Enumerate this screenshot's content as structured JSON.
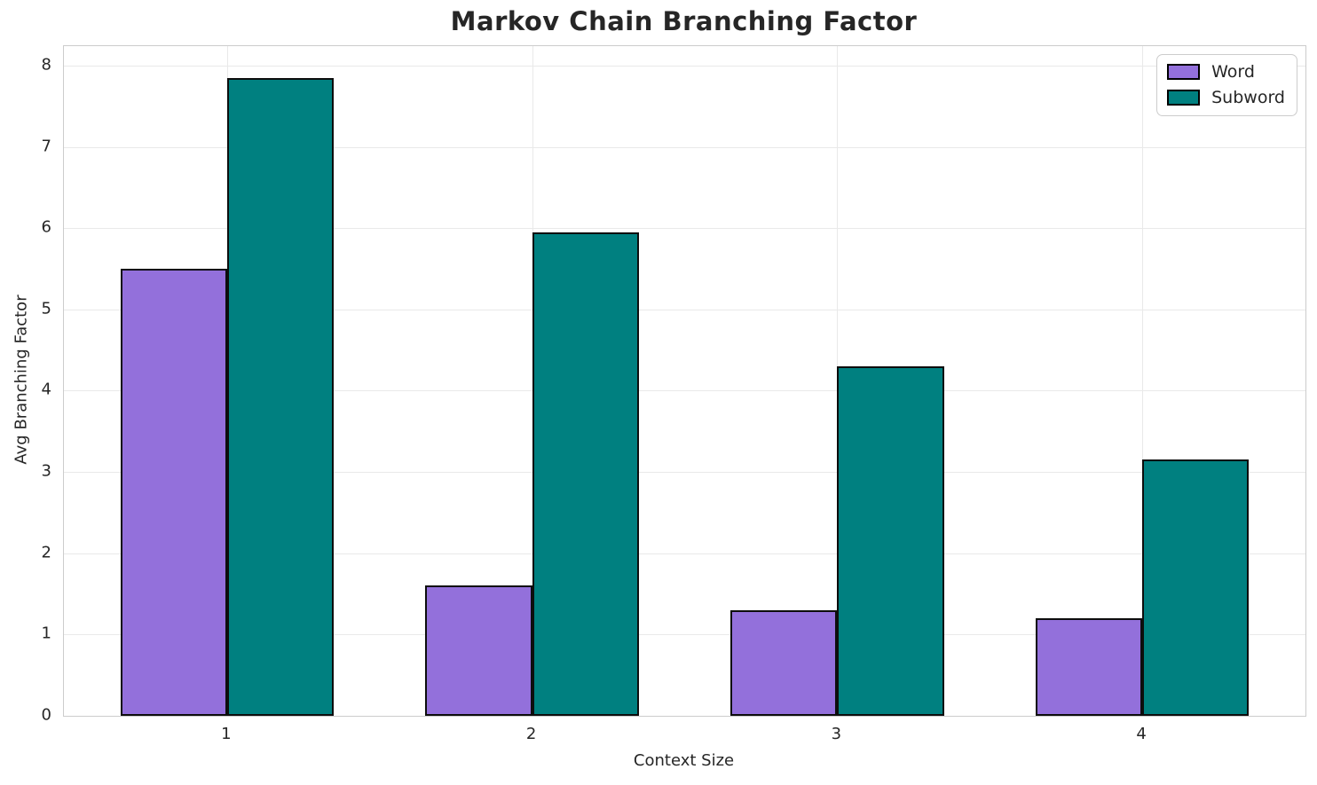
{
  "chart_data": {
    "type": "bar",
    "title": "Markov Chain Branching Factor",
    "xlabel": "Context Size",
    "ylabel": "Avg Branching Factor",
    "categories": [
      "1",
      "2",
      "3",
      "4"
    ],
    "x_positions": [
      1,
      2,
      3,
      4
    ],
    "series": [
      {
        "name": "Word",
        "color": "#9370DB",
        "values": [
          5.5,
          1.6,
          1.3,
          1.2
        ]
      },
      {
        "name": "Subword",
        "color": "#008080",
        "values": [
          7.85,
          5.95,
          4.3,
          3.15
        ]
      }
    ],
    "bar_width": 0.35,
    "bar_edge_color": "#0d0d0d",
    "yticks": [
      0,
      1,
      2,
      3,
      4,
      5,
      6,
      7,
      8
    ],
    "xlim": [
      0.465,
      4.535
    ],
    "ylim": [
      0,
      8.24
    ],
    "grid": true,
    "legend_position": "upper right"
  },
  "colors": {
    "gridline": "#e9e9e9",
    "spine": "#cccccc",
    "text": "#262626",
    "background": "#ffffff"
  }
}
